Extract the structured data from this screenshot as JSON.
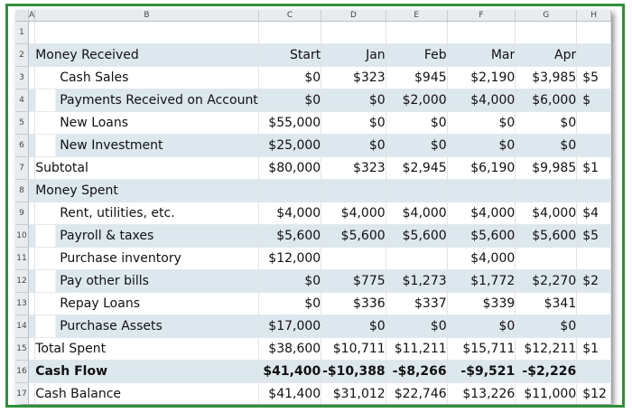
{
  "spreadsheet": {
    "column_headers": [
      "A",
      "B",
      "C",
      "D",
      "E",
      "F",
      "G",
      "H"
    ],
    "rows": [
      {
        "num": "1",
        "label": "",
        "indent": false,
        "bold": false,
        "band": false,
        "values": [
          "",
          "",
          "",
          "",
          "",
          ""
        ],
        "neg": [
          false,
          false,
          false,
          false,
          false,
          false
        ]
      },
      {
        "num": "2",
        "label": "Money Received",
        "indent": false,
        "bold": false,
        "band": true,
        "values": [
          "Start",
          "Jan",
          "Feb",
          "Mar",
          "Apr",
          ""
        ],
        "neg": [
          false,
          false,
          false,
          false,
          false,
          false
        ]
      },
      {
        "num": "3",
        "label": "Cash Sales",
        "indent": true,
        "bold": false,
        "band": false,
        "values": [
          "$0",
          "$323",
          "$945",
          "$2,190",
          "$3,985",
          "$5"
        ],
        "neg": [
          false,
          false,
          false,
          false,
          false,
          false
        ]
      },
      {
        "num": "4",
        "label": "Payments Received on Account",
        "indent": true,
        "bold": false,
        "band": true,
        "values": [
          "$0",
          "$0",
          "$2,000",
          "$4,000",
          "$6,000",
          "$"
        ],
        "neg": [
          false,
          false,
          false,
          false,
          false,
          false
        ]
      },
      {
        "num": "5",
        "label": "New Loans",
        "indent": true,
        "bold": false,
        "band": false,
        "values": [
          "$55,000",
          "$0",
          "$0",
          "$0",
          "$0",
          ""
        ],
        "neg": [
          false,
          false,
          false,
          false,
          false,
          false
        ]
      },
      {
        "num": "6",
        "label": "New Investment",
        "indent": true,
        "bold": false,
        "band": true,
        "values": [
          "$25,000",
          "$0",
          "$0",
          "$0",
          "$0",
          ""
        ],
        "neg": [
          false,
          false,
          false,
          false,
          false,
          false
        ]
      },
      {
        "num": "7",
        "label": "Subtotal",
        "indent": false,
        "bold": false,
        "band": false,
        "values": [
          "$80,000",
          "$323",
          "$2,945",
          "$6,190",
          "$9,985",
          "$1"
        ],
        "neg": [
          false,
          false,
          false,
          false,
          false,
          false
        ]
      },
      {
        "num": "8",
        "label": "Money Spent",
        "indent": false,
        "bold": false,
        "band": true,
        "values": [
          "",
          "",
          "",
          "",
          "",
          ""
        ],
        "neg": [
          false,
          false,
          false,
          false,
          false,
          false
        ]
      },
      {
        "num": "9",
        "label": "Rent, utilities, etc.",
        "indent": true,
        "bold": false,
        "band": false,
        "values": [
          "$4,000",
          "$4,000",
          "$4,000",
          "$4,000",
          "$4,000",
          "$4"
        ],
        "neg": [
          false,
          false,
          false,
          false,
          false,
          false
        ]
      },
      {
        "num": "10",
        "label": "Payroll & taxes",
        "indent": true,
        "bold": false,
        "band": true,
        "values": [
          "$5,600",
          "$5,600",
          "$5,600",
          "$5,600",
          "$5,600",
          "$5"
        ],
        "neg": [
          false,
          false,
          false,
          false,
          false,
          false
        ]
      },
      {
        "num": "11",
        "label": "Purchase inventory",
        "indent": true,
        "bold": false,
        "band": false,
        "values": [
          "$12,000",
          "",
          "",
          "$4,000",
          "",
          ""
        ],
        "neg": [
          false,
          false,
          false,
          false,
          false,
          false
        ]
      },
      {
        "num": "12",
        "label": "Pay other bills",
        "indent": true,
        "bold": false,
        "band": true,
        "values": [
          "$0",
          "$775",
          "$1,273",
          "$1,772",
          "$2,270",
          "$2"
        ],
        "neg": [
          false,
          false,
          false,
          false,
          false,
          false
        ]
      },
      {
        "num": "13",
        "label": "Repay Loans",
        "indent": true,
        "bold": false,
        "band": false,
        "values": [
          "$0",
          "$336",
          "$337",
          "$339",
          "$341",
          ""
        ],
        "neg": [
          false,
          false,
          false,
          false,
          false,
          false
        ]
      },
      {
        "num": "14",
        "label": "Purchase Assets",
        "indent": true,
        "bold": false,
        "band": true,
        "values": [
          "$17,000",
          "$0",
          "$0",
          "$0",
          "$0",
          ""
        ],
        "neg": [
          false,
          false,
          false,
          false,
          false,
          false
        ]
      },
      {
        "num": "15",
        "label": "Total Spent",
        "indent": false,
        "bold": false,
        "band": false,
        "values": [
          "$38,600",
          "$10,711",
          "$11,211",
          "$15,711",
          "$12,211",
          "$1"
        ],
        "neg": [
          false,
          false,
          false,
          false,
          false,
          false
        ]
      },
      {
        "num": "16",
        "label": "Cash Flow",
        "indent": false,
        "bold": true,
        "band": true,
        "values": [
          "$41,400",
          "-$10,388",
          "-$8,266",
          "-$9,521",
          "-$2,226",
          ""
        ],
        "neg": [
          false,
          true,
          true,
          true,
          true,
          false
        ]
      },
      {
        "num": "17",
        "label": "Cash Balance",
        "indent": false,
        "bold": false,
        "band": false,
        "values": [
          "$41,400",
          "$31,012",
          "$22,746",
          "$13,226",
          "$11,000",
          "$12"
        ],
        "neg": [
          false,
          false,
          false,
          false,
          false,
          false
        ]
      }
    ]
  },
  "colors": {
    "frame": "#2f8f3a",
    "band": "#dde7ee",
    "negative": "#d92b2b",
    "header_bg": "#e9ecef"
  }
}
